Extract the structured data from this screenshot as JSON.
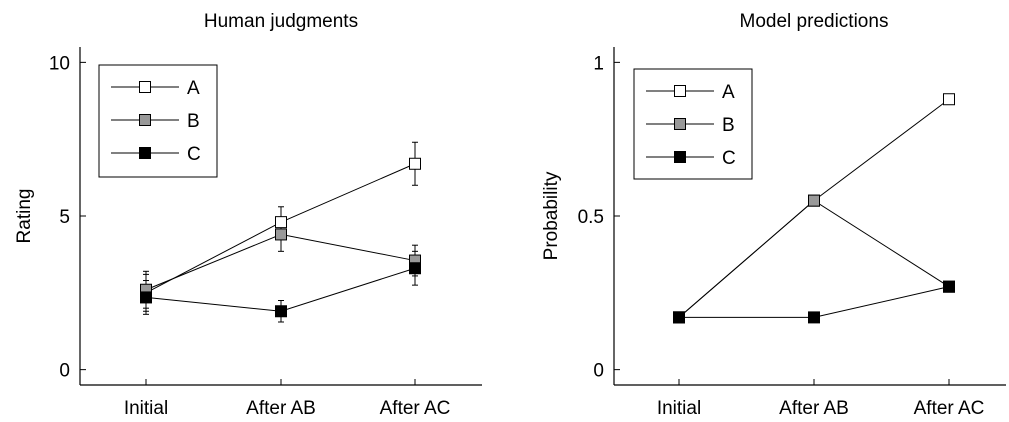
{
  "chart_data": [
    {
      "type": "line",
      "title": "Human judgments",
      "xlabel": "",
      "ylabel": "Rating",
      "categories": [
        "Initial",
        "After AB",
        "After AC"
      ],
      "ylim": [
        -0.5,
        10.5
      ],
      "yticks": [
        0,
        5,
        10
      ],
      "ytick_labels": [
        "0",
        "5",
        "10"
      ],
      "grid": false,
      "legend": "top-left",
      "series": [
        {
          "name": "A",
          "values": [
            2.5,
            4.8,
            6.7
          ],
          "error": [
            0.6,
            0.5,
            0.7
          ],
          "marker_fill": "#ffffff"
        },
        {
          "name": "B",
          "values": [
            2.6,
            4.4,
            3.55
          ],
          "error": [
            0.6,
            0.55,
            0.5
          ],
          "marker_fill": "#999999"
        },
        {
          "name": "C",
          "values": [
            2.35,
            1.9,
            3.3
          ],
          "error": [
            0.55,
            0.35,
            0.55
          ],
          "marker_fill": "#000000"
        }
      ]
    },
    {
      "type": "line",
      "title": "Model predictions",
      "xlabel": "",
      "ylabel": "Probability",
      "categories": [
        "Initial",
        "After AB",
        "After AC"
      ],
      "ylim": [
        -0.05,
        1.05
      ],
      "yticks": [
        0,
        0.5,
        1
      ],
      "ytick_labels": [
        "0",
        "0.5",
        "1"
      ],
      "grid": false,
      "legend": "top-left",
      "series": [
        {
          "name": "A",
          "values": [
            0.17,
            0.55,
            0.88
          ],
          "marker_fill": "#ffffff"
        },
        {
          "name": "B",
          "values": [
            0.17,
            0.55,
            0.27
          ],
          "marker_fill": "#999999"
        },
        {
          "name": "C",
          "values": [
            0.17,
            0.17,
            0.27
          ],
          "marker_fill": "#000000"
        }
      ]
    }
  ]
}
